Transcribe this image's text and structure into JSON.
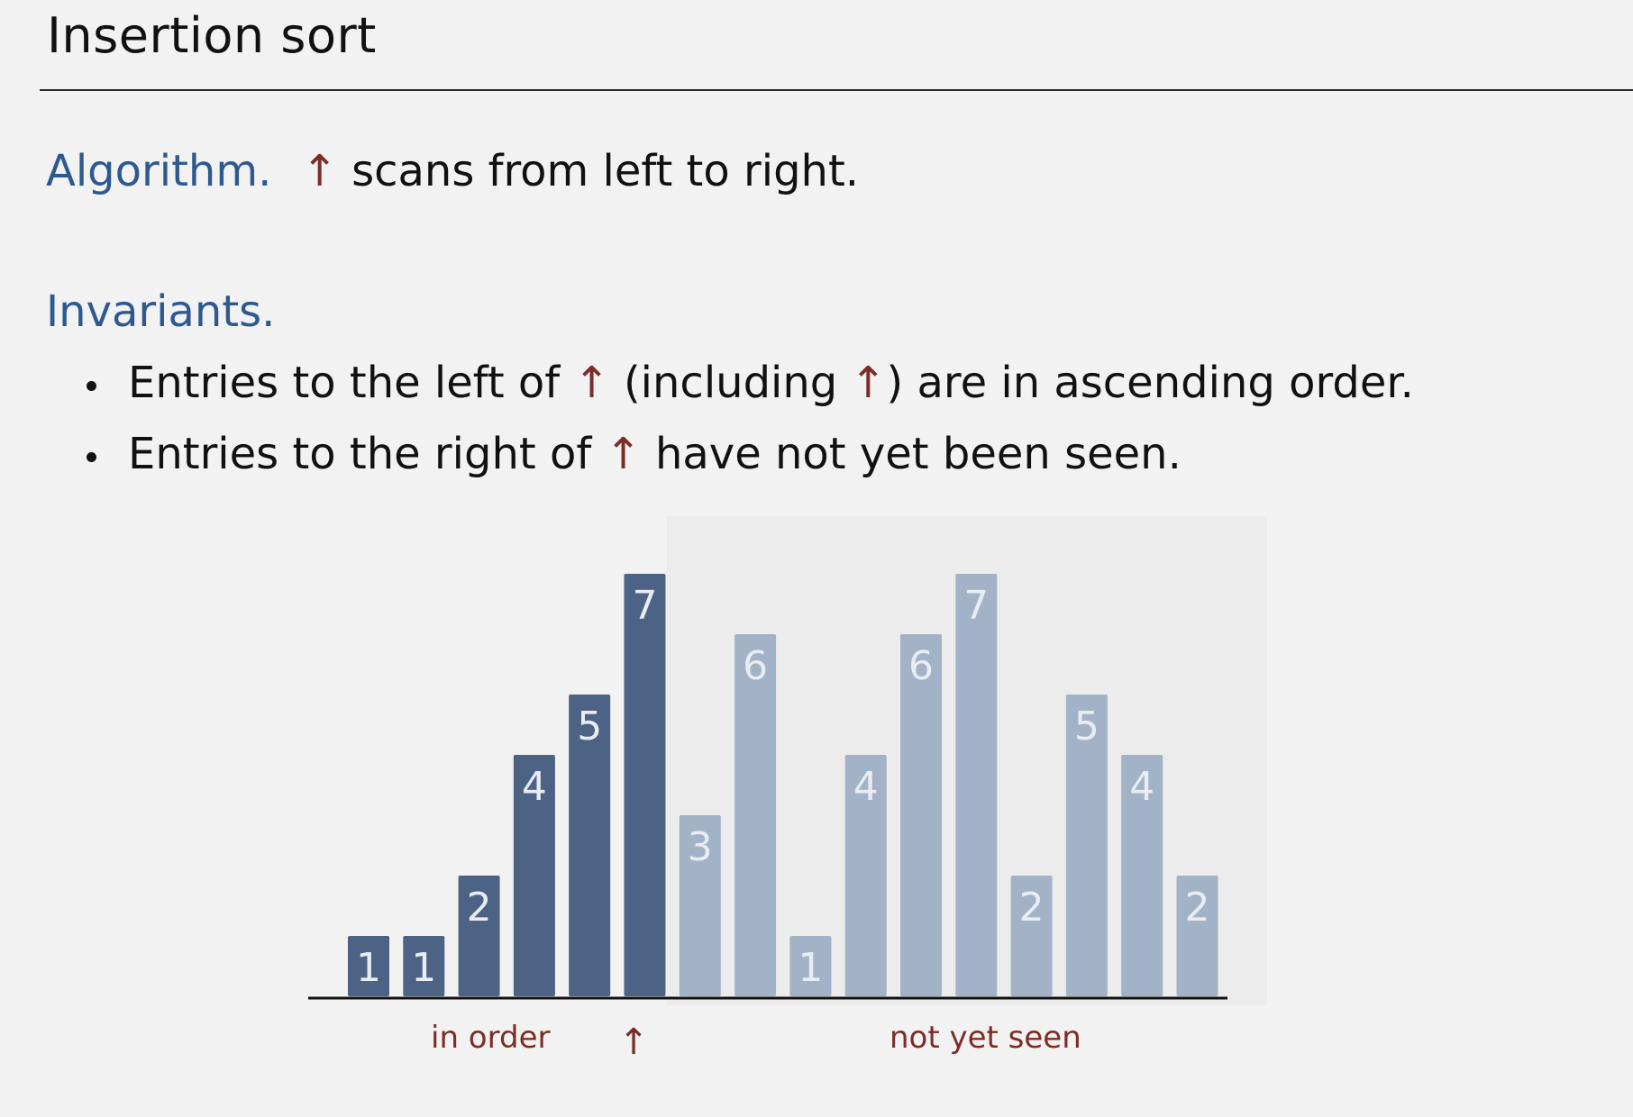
{
  "slide": {
    "title": "Insertion sort",
    "algorithm": {
      "label": "Algorithm.",
      "arrow": "↑",
      "text": "scans from left to right."
    },
    "invariants": {
      "label": "Invariants.",
      "bullets": [
        {
          "part1": "Entries to the left of",
          "arrow1": "↑",
          "part2": "(including",
          "arrow2": "↑",
          "part3": ") are in ascending order."
        },
        {
          "part1": "Entries to the right of",
          "arrow1": "↑",
          "part2": "have not yet been seen."
        }
      ]
    }
  },
  "chart_data": {
    "type": "bar",
    "values": [
      1,
      1,
      2,
      4,
      5,
      7,
      3,
      6,
      1,
      4,
      6,
      7,
      2,
      5,
      4,
      2
    ],
    "labels": [
      "1",
      "1",
      "2",
      "4",
      "5",
      "7",
      "3",
      "6",
      "1",
      "4",
      "6",
      "7",
      "2",
      "5",
      "4",
      "2"
    ],
    "in_order_count": 6,
    "annotations": {
      "in_order": "in order",
      "pointer": "↑",
      "not_yet_seen": "not yet seen"
    },
    "colors": {
      "in_order": "#4d6385",
      "not_seen": "#a3b3c7",
      "baseline": "#111111",
      "arrow": "#7b2d26"
    }
  }
}
